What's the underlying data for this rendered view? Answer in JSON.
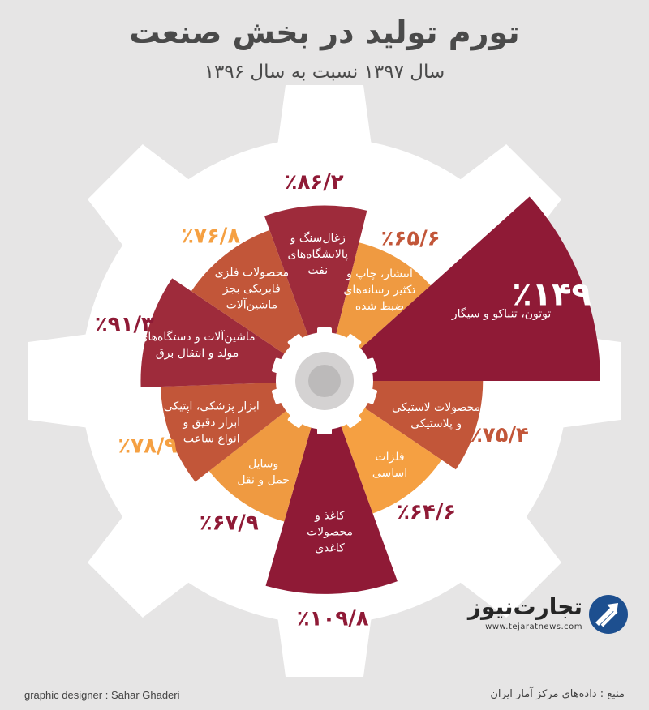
{
  "title": "تورم تولید در بخش صنعت",
  "subtitle": "سال ۱۳۹۷ نسبت به سال ۱۳۹۶",
  "chart_data": {
    "type": "pie",
    "title": "تورم تولید در بخش صنعت",
    "subtitle": "سال ۱۳۹۷ نسبت به سال ۱۳۹۶",
    "categories": [
      "زغال‌سنگ و پالایشگاه‌های نفت",
      "انتشار، چاپ و تکثیر رسانه‌های ضبط شده",
      "توتون، تنباکو و سیگار",
      "محصولات لاستیکی و پلاستیکی",
      "فلزات اساسی",
      "کاغذ و محصولات کاغذی",
      "وسایل حمل و نقل",
      "ابزار پزشکی، اپتیکی ابزار دقیق و انواع ساعت",
      "ماشین‌آلات و دستگاه‌های مولد و انتقال برق",
      "محصولات فلزی فابریکی بجز ماشین‌آلات"
    ],
    "values": [
      86.2,
      65.6,
      149,
      75.4,
      64.6,
      109.8,
      67.9,
      78.9,
      91.3,
      76.8
    ],
    "labels": [
      "٪۸۶/۲",
      "٪۶۵/۶",
      "٪۱۴۹",
      "٪۷۵/۴",
      "٪۶۴/۶",
      "٪۱۰۹/۸",
      "٪۶۷/۹",
      "٪۷۸/۹",
      "٪۹۱/۳",
      "٪۷۶/۸"
    ],
    "segment_lines": [
      [
        "زغال‌سنگ و",
        "پالایشگاه‌های",
        "نفت"
      ],
      [
        "انتشار، چاپ و",
        "تکثیر رسانه‌های",
        "ضبط شده"
      ],
      [
        "توتون، تنباکو و سیگار"
      ],
      [
        "محصولات لاستیکی",
        "و پلاستیکی"
      ],
      [
        "فلزات",
        "اساسی"
      ],
      [
        "کاغذ و",
        "محصولات",
        "کاغذی"
      ],
      [
        "وسایل",
        "حمل و نقل"
      ],
      [
        "ابزار پزشکی، اپتیکی",
        "ابزار دقیق و",
        "انواع ساعت"
      ],
      [
        "ماشین‌آلات و دستگاه‌های",
        "مولد و انتقال برق"
      ],
      [
        "محصولات فلزی",
        "فابریکی بجز",
        "ماشین‌آلات"
      ]
    ],
    "colors": [
      "#9e2b3b",
      "#ef9a41",
      "#8f1a36",
      "#c25639",
      "#f5a042",
      "#8f1a36",
      "#ef9a41",
      "#c25639",
      "#9e2b3b",
      "#c25639"
    ],
    "label_colors": [
      "#8f1a36",
      "#c25639",
      "#8f1a36",
      "#c25639",
      "#8f1a36",
      "#8f1a36",
      "#8f1a36",
      "#f5a042",
      "#8f1a36",
      "#f5a042"
    ],
    "gear_color": "#ffffff",
    "background": "#e6e5e5"
  },
  "brand": {
    "name": "تجارت‌نیوز",
    "url": "www.tejaratnews.com"
  },
  "footer": {
    "designer": "graphic designer : Sahar Ghaderi",
    "source": "منبع : داده‌های مرکز آمار ایران"
  }
}
